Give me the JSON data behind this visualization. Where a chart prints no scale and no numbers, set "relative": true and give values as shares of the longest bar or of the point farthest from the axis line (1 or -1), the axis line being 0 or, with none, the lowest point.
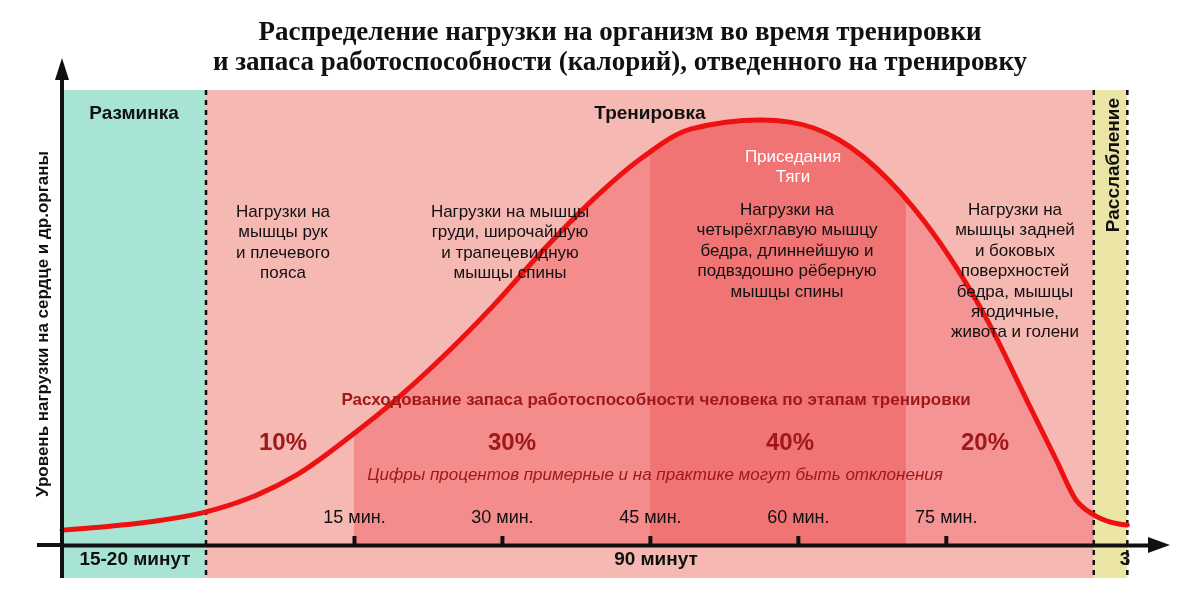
{
  "chart_data": {
    "type": "line",
    "relative": true,
    "title": "Распределение нагрузки на организм во время тренировки\nи запаса работоспособности (калорий), отведенного на тренировку",
    "ylabel": "Уровень нагрузки на сердце и др.органы",
    "xlim": [
      -14.6,
      95.7
    ],
    "xticks": [
      {
        "value": 15,
        "label": "15 мин."
      },
      {
        "value": 30,
        "label": "30 мин."
      },
      {
        "value": 45,
        "label": "45 мин."
      },
      {
        "value": 60,
        "label": "60 мин."
      },
      {
        "value": 75,
        "label": "75 мин."
      }
    ],
    "grid": false,
    "marker": "none",
    "line_style": "solid",
    "series": [
      {
        "color": "#ee1111",
        "x": [
          -14.6,
          -10.8,
          -5.8,
          0,
          5.2,
          9.2,
          15.2,
          19.2,
          24.2,
          29.2,
          34.2,
          39.2,
          44.2,
          49.2,
          56.2,
          59.2,
          64.2,
          69.2,
          74.2,
          79.2,
          83.2,
          86.2,
          88.2,
          90,
          91.7,
          93.4
        ],
        "values": [
          0.035,
          0.042,
          0.054,
          0.078,
          0.118,
          0.165,
          0.266,
          0.341,
          0.447,
          0.565,
          0.694,
          0.812,
          0.911,
          0.979,
          1,
          0.995,
          0.953,
          0.859,
          0.718,
          0.529,
          0.341,
          0.2,
          0.106,
          0.071,
          0.054,
          0.047
        ]
      }
    ],
    "bands": [
      {
        "axis": "x",
        "from": -14.6,
        "to": 0,
        "label": "Разминка",
        "color": "#a8e4d4"
      },
      {
        "axis": "x",
        "from": 0,
        "to": 90,
        "label": "Тренировка",
        "color": "#f6b8b2"
      },
      {
        "axis": "x",
        "from": 90,
        "to": 93.4,
        "label": "Расслабление",
        "color": "#ece6a6"
      },
      {
        "axis": "x",
        "from": 15,
        "to": 45,
        "color": "#f48c8c"
      },
      {
        "axis": "x",
        "from": 45,
        "to": 71,
        "color": "#f07474"
      },
      {
        "axis": "x",
        "from": 71,
        "to": 90,
        "color": "#f59494"
      }
    ],
    "ref_lines": [
      {
        "axis": "x",
        "value": 0,
        "line_style": "dashed"
      },
      {
        "axis": "x",
        "value": 90,
        "line_style": "dashed"
      },
      {
        "axis": "x",
        "value": 93.4,
        "line_style": "dashed"
      }
    ],
    "annotations": [
      "Нагрузки на\nмышцы рук\nи плечевого\nпояса",
      "Нагрузки на мышцы\nгруди, широчайшую\nи трапецевидную\nмышцы спины",
      "Приседания\nТяги",
      "Нагрузки на\nчетырёхглавую мышцу\nбедра, длиннейшую и\nподвздошно рёберную\nмышцы спины",
      "Нагрузки на\nмышцы задней\nи боковых\nповерхностей\nбедра, мышцы\nягодичные,\nживота и голени",
      "Расходование запаса работоспособности человека по этапам тренировки",
      "10%",
      "30%",
      "40%",
      "20%",
      "Цифры процентов примерные и на практике могут быть отклонения",
      "15-20 минут",
      "90 минут",
      "3"
    ]
  }
}
